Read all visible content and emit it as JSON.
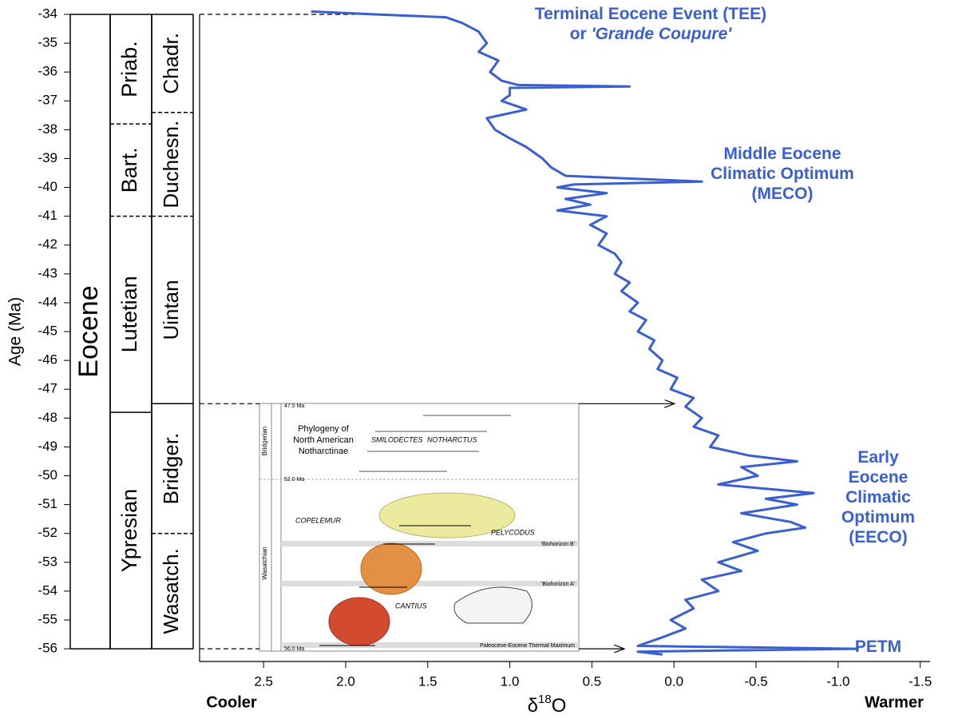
{
  "chart_data": {
    "type": "line",
    "ylabel": "Age (Ma)",
    "xlabel": [
      "δ",
      "18",
      "O"
    ],
    "x_left_label": "Cooler",
    "x_right_label": "Warmer",
    "xlim": [
      2.89,
      -1.56
    ],
    "ylim": [
      -33.89,
      -56.44
    ],
    "xticks": [
      2.5,
      {
        "value": 2,
        "label": "2.0"
      },
      1.5,
      {
        "value": 1,
        "label": "1.0"
      },
      0.5,
      {
        "value": 0,
        "label": "0.0"
      },
      -0.5,
      {
        "value": -1,
        "label": "-1.0"
      },
      -1.5
    ],
    "yticks": [
      -34,
      -35,
      -36,
      -37,
      -38,
      -39,
      -40,
      -41,
      -42,
      -43,
      -44,
      -45,
      -46,
      -47,
      -48,
      -49,
      -50,
      -51,
      -52,
      -53,
      -54,
      -55,
      -56
    ],
    "series": [
      {
        "color": "#3a5fd0",
        "x": [
          2.21,
          1.82,
          1.39,
          1.29,
          1.19,
          1.14,
          1.19,
          1.07,
          1.12,
          1.05,
          0.95,
          0.27,
          1.0,
          1.0,
          1.05,
          0.9,
          1.14,
          1.09,
          1.0,
          0.9,
          0.8,
          0.75,
          0.66,
          -0.17,
          0.61,
          0.71,
          0.41,
          0.66,
          0.51,
          0.71,
          0.41,
          0.51,
          0.41,
          0.46,
          0.36,
          0.32,
          0.36,
          0.27,
          0.32,
          0.22,
          0.27,
          0.17,
          0.22,
          0.12,
          0.15,
          0.07,
          0.1,
          -0.02,
          0.02,
          -0.12,
          -0.07,
          -0.17,
          -0.12,
          -0.27,
          -0.22,
          -0.46,
          -0.75,
          -0.41,
          -0.51,
          -0.27,
          -0.85,
          -0.56,
          -0.75,
          -0.41,
          -0.71,
          -0.8,
          -0.56,
          -0.36,
          -0.51,
          -0.27,
          -0.41,
          -0.17,
          -0.27,
          -0.07,
          -0.12,
          0.02,
          -0.07,
          0.07,
          0.22,
          -1.12,
          0.22,
          0.07
        ],
        "values": [
          -33.9,
          -34.0,
          -34.1,
          -34.3,
          -34.6,
          -35.0,
          -35.3,
          -35.6,
          -36.0,
          -36.3,
          -36.45,
          -36.5,
          -36.55,
          -36.8,
          -37.0,
          -37.3,
          -37.6,
          -38.0,
          -38.3,
          -38.6,
          -39.0,
          -39.3,
          -39.6,
          -39.8,
          -39.9,
          -40.0,
          -40.2,
          -40.4,
          -40.6,
          -40.8,
          -41.0,
          -41.3,
          -41.6,
          -42.0,
          -42.3,
          -42.6,
          -43.0,
          -43.3,
          -43.6,
          -44.0,
          -44.3,
          -44.6,
          -45.0,
          -45.3,
          -45.6,
          -46.0,
          -46.3,
          -46.6,
          -47.0,
          -47.3,
          -47.6,
          -48.0,
          -48.3,
          -48.6,
          -49.0,
          -49.3,
          -49.5,
          -49.7,
          -50.0,
          -50.3,
          -50.6,
          -50.8,
          -51.0,
          -51.3,
          -51.6,
          -51.8,
          -52.0,
          -52.3,
          -52.6,
          -53.0,
          -53.3,
          -53.6,
          -54.0,
          -54.3,
          -54.6,
          -55.0,
          -55.3,
          -55.6,
          -55.9,
          -56.0,
          -56.1,
          -56.2
        ]
      }
    ],
    "strat_columns": [
      {
        "units": [
          {
            "name": "Eocene",
            "top": -34,
            "base": -56,
            "base_line": "solid"
          }
        ]
      },
      {
        "units": [
          {
            "name": "Priab.",
            "top": -34,
            "base": -37.8,
            "base_line": "dashed"
          },
          {
            "name": "Bart.",
            "top": -37.8,
            "base": -41,
            "base_line": "dashed"
          },
          {
            "name": "Lutetian",
            "top": -41,
            "base": -47.8,
            "base_line": "solid"
          },
          {
            "name": "Ypresian",
            "top": -47.8,
            "base": -56,
            "base_line": "solid"
          }
        ]
      },
      {
        "units": [
          {
            "name": "Chadr.",
            "top": -34,
            "base": -37.4,
            "base_line": "dashed"
          },
          {
            "name": "Duchesn.",
            "top": -37.4,
            "base": -41,
            "base_line": "dashed"
          },
          {
            "name": "Uintan",
            "top": -41,
            "base": -47.5,
            "base_line": "solid"
          },
          {
            "name": "Bridger.",
            "top": -47.5,
            "base": -52,
            "base_line": "dashed"
          },
          {
            "name": "Wasatch.",
            "top": -52,
            "base": -56,
            "base_line": "solid"
          }
        ]
      }
    ],
    "reference_ages": [
      -34,
      -47.5,
      -56
    ],
    "annotations": [
      {
        "lines": [
          [
            "Terminal Eocene Event (TEE)"
          ],
          [
            "or ",
            "'Grande Coupure'"
          ]
        ]
      },
      {
        "lines": [
          [
            "Middle Eocene"
          ],
          [
            "Climatic Optimum"
          ],
          [
            "(MECO)"
          ]
        ]
      },
      {
        "lines": [
          [
            "Early"
          ],
          [
            "Eocene"
          ],
          [
            "Climatic"
          ],
          [
            "Optimum"
          ],
          [
            "(EECO)"
          ]
        ]
      },
      {
        "lines": [
          [
            "PETM"
          ]
        ]
      }
    ],
    "inset": {
      "title": [
        "Phylogeny of",
        "North American",
        "Notharctinae"
      ],
      "ages": [
        "47.5 Ma",
        "52.0 Ma",
        "56.0 Ma"
      ],
      "stages": [
        "Bridgerian",
        "Wasatchian"
      ],
      "genera": [
        "SMILODECTES",
        "NOTHARCTUS",
        "COPELEMUR",
        "PELYCODUS",
        "CANTIUS"
      ],
      "horizons": [
        "'Biohorizon B'",
        "'Biohorizon A'",
        "Paleocene-Eocene Thermal Maximum"
      ]
    }
  }
}
